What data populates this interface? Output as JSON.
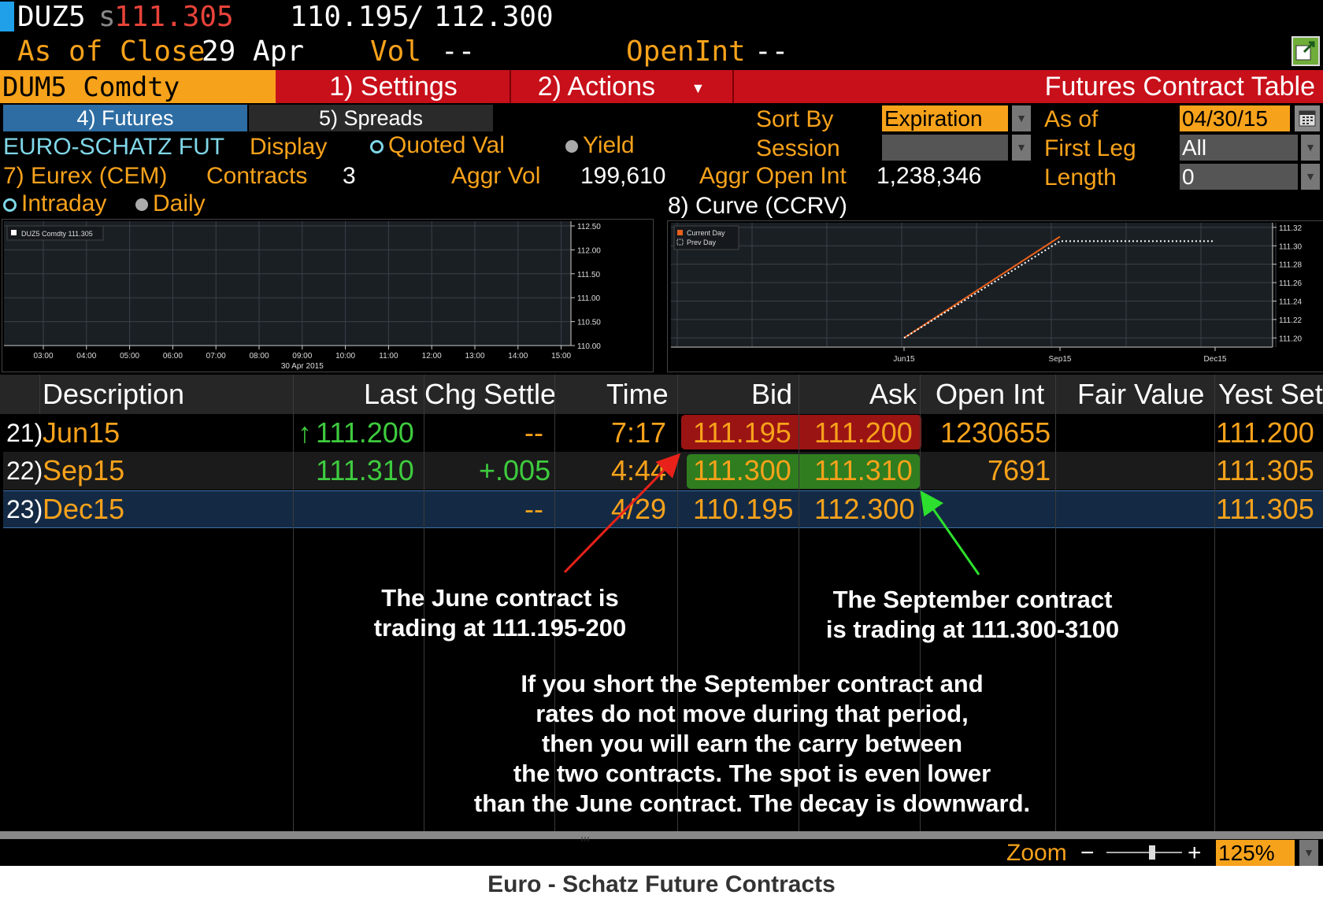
{
  "header": {
    "ticker": "DUZ5",
    "last_prefix": "s",
    "last": "111.305",
    "bid": "110.195",
    "slash": "/",
    "ask": "112.300",
    "as_of_label": "As of Close",
    "as_of_date": "29 Apr",
    "vol_label": "Vol",
    "vol_value": "--",
    "openint_label": "OpenInt",
    "openint_value": "--"
  },
  "toolbar": {
    "security": "DUM5 Comdty",
    "settings": "1) Settings",
    "actions": "2) Actions",
    "title": "Futures Contract Table"
  },
  "subtabs": {
    "futures": "4) Futures",
    "spreads": "5) Spreads"
  },
  "info": {
    "name": "EURO-SCHATZ FUT",
    "exchange": "7) Eurex (CEM)",
    "display_label": "Display",
    "quoted_val": "Quoted Val",
    "yield": "Yield",
    "contracts_label": "Contracts",
    "contracts_value": "3",
    "aggr_vol_label": "Aggr Vol",
    "aggr_vol_value": "199,610",
    "aggr_oi_label": "Aggr Open Int",
    "aggr_oi_value": "1,238,346",
    "sort_by_label": "Sort By",
    "sort_by_value": "Expiration",
    "session_label": "Session",
    "session_value": "",
    "as_of_label": "As of",
    "as_of_value": "04/30/15",
    "first_leg_label": "First Leg",
    "first_leg_value": "All",
    "length_label": "Length",
    "length_value": "0"
  },
  "intraday_chart": {
    "intraday_label": "Intraday",
    "daily_label": "Daily",
    "legend": "DUZ5 Comdty  111.305",
    "x_ticks": [
      "03:00",
      "04:00",
      "05:00",
      "06:00",
      "07:00",
      "08:00",
      "09:00",
      "10:00",
      "11:00",
      "12:00",
      "13:00",
      "14:00",
      "15:00"
    ],
    "x_date": "30 Apr 2015",
    "y_ticks": [
      "112.50",
      "112.00",
      "111.50",
      "111.00",
      "110.50",
      "110.00"
    ]
  },
  "curve_chart": {
    "title": "8) Curve (CCRV)",
    "legend_current": "Current Day",
    "legend_prev": "Prev Day",
    "x_ticks": [
      "Jun15",
      "Sep15",
      "Dec15"
    ],
    "y_ticks": [
      "111.32",
      "111.30",
      "111.28",
      "111.26",
      "111.24",
      "111.22",
      "111.20"
    ]
  },
  "chart_data": {
    "type": "line",
    "categories": [
      "Jun15",
      "Sep15",
      "Dec15"
    ],
    "series": [
      {
        "name": "Current Day",
        "values": [
          111.2,
          111.31,
          null
        ]
      },
      {
        "name": "Prev Day",
        "values": [
          111.2,
          111.305,
          111.305
        ]
      }
    ],
    "ylim": [
      111.19,
      111.325
    ],
    "colors": {
      "Current Day": "#e8601a",
      "Prev Day": "#ffffff"
    }
  },
  "table": {
    "columns": [
      "Description",
      "Last",
      "Chg",
      "Settle",
      "Time",
      "Bid",
      "Ask",
      "Open Int",
      "Fair Value",
      "Yest Set"
    ],
    "rows": [
      {
        "num": "21)",
        "desc": "Jun15",
        "last_arrow": "↑",
        "last": "111.200",
        "chg_settle": "--",
        "time": "7:17",
        "bid": "111.195",
        "ask": "111.200",
        "open_int": "1230655",
        "fair": "",
        "yest": "111.200"
      },
      {
        "num": "22)",
        "desc": "Sep15",
        "last_arrow": "",
        "last": "111.310",
        "chg_settle": "+.005",
        "time": "4:44",
        "bid": "111.300",
        "ask": "111.310",
        "open_int": "7691",
        "fair": "",
        "yest": "111.305"
      },
      {
        "num": "23)",
        "desc": "Dec15",
        "last_arrow": "",
        "last": "",
        "chg_settle": "--",
        "time": "4/29",
        "bid": "110.195",
        "ask": "112.300",
        "open_int": "",
        "fair": "",
        "yest": "111.305"
      }
    ]
  },
  "annotations": {
    "june_line1": "The June contract is",
    "june_line2": "trading at 111.195-200",
    "sep_line1": "The September contract",
    "sep_line2": "is trading at 111.300-3100",
    "carry_lines": [
      "If you short the September contract and",
      "rates do not move during that period,",
      "then you will earn the carry between",
      "the two contracts.  The spot is even lower",
      "than the June contract.  The decay is downward."
    ]
  },
  "footer": {
    "zoom_label": "Zoom",
    "minus": "−",
    "plus": "+",
    "zoom_value": "125%",
    "zoom_level_pct": 60
  },
  "caption": "Euro - Schatz Future Contracts"
}
